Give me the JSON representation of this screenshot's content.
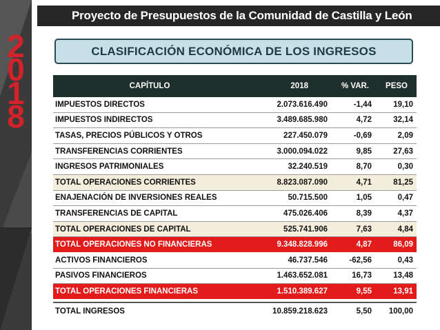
{
  "side": {
    "year_digits": [
      "2",
      "0",
      "1",
      "8"
    ]
  },
  "header": {
    "title": "Proyecto de Presupuestos de la Comunidad de Castilla y León"
  },
  "section": {
    "title": "CLASIFICACIÓN ECONÓMICA DE LOS INGRESOS"
  },
  "table": {
    "columns": [
      "CAPÍTULO",
      "2018",
      "% VAR.",
      "PESO"
    ],
    "rows": [
      {
        "style": "normal",
        "cells": [
          "IMPUESTOS DIRECTOS",
          "2.073.616.490",
          "-1,44",
          "19,10"
        ]
      },
      {
        "style": "normal",
        "cells": [
          "IMPUESTOS INDIRECTOS",
          "3.489.685.980",
          "4,72",
          "32,14"
        ]
      },
      {
        "style": "normal",
        "cells": [
          "TASAS, PRECIOS PÚBLICOS  Y OTROS",
          "227.450.079",
          "-0,69",
          "2,09"
        ]
      },
      {
        "style": "normal",
        "cells": [
          "TRANSFERENCIAS CORRIENTES",
          "3.000.094.022",
          "9,85",
          "27,63"
        ]
      },
      {
        "style": "normal",
        "cells": [
          "INGRESOS PATRIMONIALES",
          "32.240.519",
          "8,70",
          "0,30"
        ]
      },
      {
        "style": "subtotal",
        "cells": [
          "TOTAL OPERACIONES CORRIENTES",
          "8.823.087.090",
          "4,71",
          "81,25"
        ]
      },
      {
        "style": "normal",
        "cells": [
          "ENAJENACIÓN DE INVERSIONES REALES",
          "50.715.500",
          "1,05",
          "0,47"
        ]
      },
      {
        "style": "normal",
        "cells": [
          "TRANSFERENCIAS DE CAPITAL",
          "475.026.406",
          "8,39",
          "4,37"
        ]
      },
      {
        "style": "subtotal",
        "cells": [
          "TOTAL OPERACIONES DE CAPITAL",
          "525.741.906",
          "7,63",
          "4,84"
        ]
      },
      {
        "style": "red",
        "cells": [
          "TOTAL OPERACIONES NO FINANCIERAS",
          "9.348.828.996",
          "4,87",
          "86,09"
        ]
      },
      {
        "style": "normal",
        "cells": [
          "ACTIVOS FINANCIEROS",
          "46.737.546",
          "-62,56",
          "0,43"
        ]
      },
      {
        "style": "normal",
        "cells": [
          "PASIVOS FINANCIEROS",
          "1.463.652.081",
          "16,73",
          "13,48"
        ]
      },
      {
        "style": "red",
        "cells": [
          "TOTAL OPERACIONES FINANCIERAS",
          "1.510.389.627",
          "9,55",
          "13,91"
        ]
      },
      {
        "style": "total",
        "cells": [
          "TOTAL INGRESOS",
          "10.859.218.623",
          "5,50",
          "100,00"
        ]
      }
    ]
  },
  "colors": {
    "header_bg": "#262626",
    "section_bg": "#c7dfe6",
    "table_head_bg": "#1f2f2c",
    "subtotal_bg": "#f3eedb",
    "highlight_red": "#e31b1b",
    "year_red": "#d4222a"
  }
}
